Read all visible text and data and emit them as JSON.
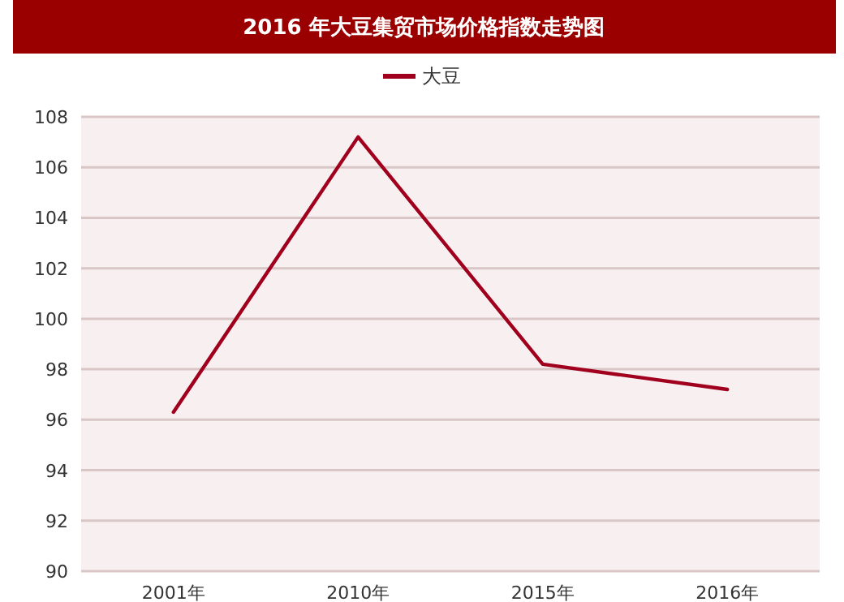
{
  "chart_data": {
    "type": "line",
    "title": "2016 年大豆集贸市场价格指数走势图",
    "categories": [
      "2001年",
      "2010年",
      "2015年",
      "2016年"
    ],
    "series": [
      {
        "name": "大豆",
        "color": "#a0001e",
        "values": [
          96.3,
          107.2,
          98.2,
          97.2
        ]
      }
    ],
    "ylim": [
      90,
      108
    ],
    "yticks": [
      90,
      92,
      94,
      96,
      98,
      100,
      102,
      104,
      106,
      108
    ],
    "grid": "y",
    "legend": "top",
    "marker": "none",
    "line_style": "solid"
  }
}
